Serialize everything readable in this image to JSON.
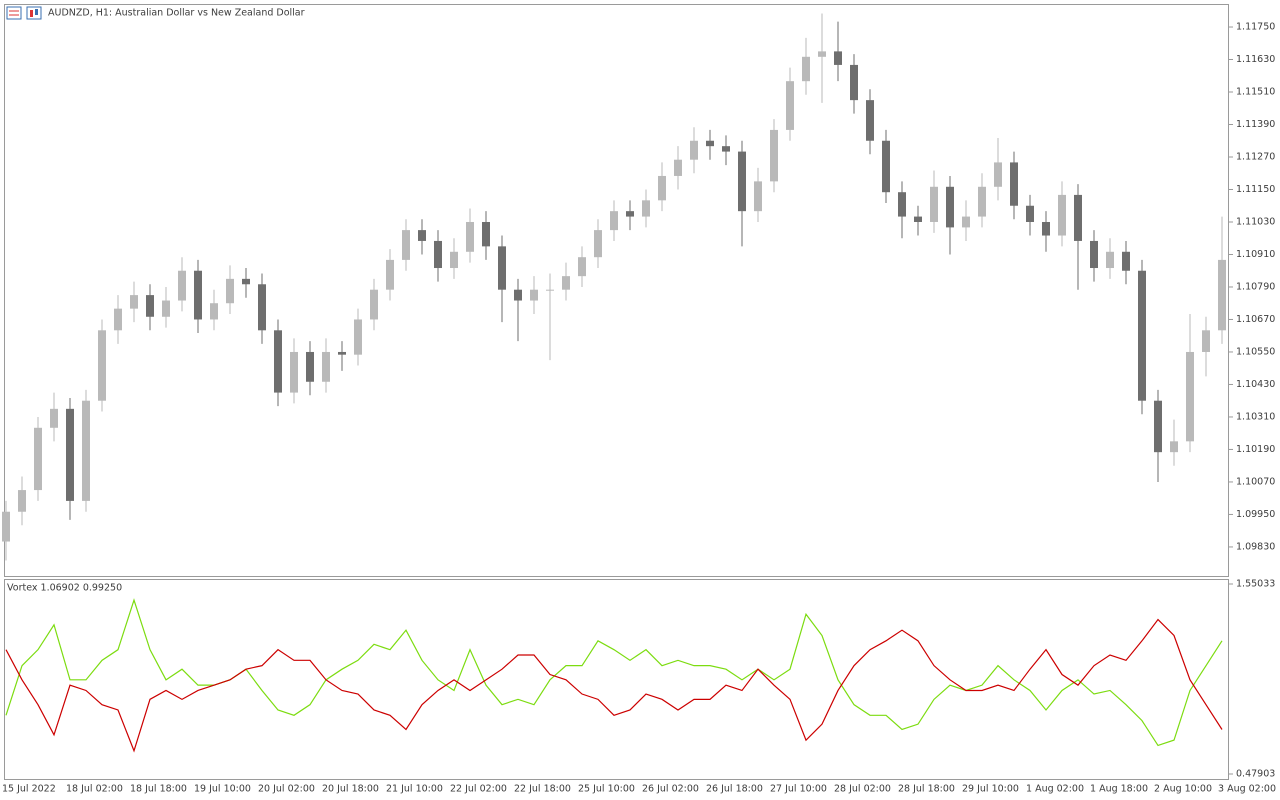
{
  "chart_data": [
    {
      "type": "candlestick",
      "title": "AUDNZD, H1:  Australian Dollar vs New Zealand Dollar",
      "categories": [
        "15 Jul 2022",
        null,
        null,
        null,
        "18 Jul 02:00",
        null,
        null,
        null,
        "18 Jul 18:00",
        null,
        null,
        null,
        "19 Jul 10:00",
        null,
        null,
        null,
        "20 Jul 02:00",
        null,
        null,
        null,
        "20 Jul 18:00",
        null,
        null,
        null,
        "21 Jul 10:00",
        null,
        null,
        null,
        "22 Jul 02:00",
        null,
        null,
        null,
        "22 Jul 18:00",
        null,
        null,
        null,
        "25 Jul 10:00",
        null,
        null,
        null,
        "26 Jul 02:00",
        null,
        null,
        null,
        "26 Jul 18:00",
        null,
        null,
        null,
        "27 Jul 10:00",
        null,
        null,
        null,
        "28 Jul 02:00",
        null,
        null,
        null,
        "28 Jul 18:00",
        null,
        null,
        null,
        "29 Jul 10:00",
        null,
        null,
        null,
        "1 Aug 02:00",
        null,
        null,
        null,
        "1 Aug 18:00",
        null,
        null,
        null,
        "2 Aug 10:00",
        null,
        null,
        null,
        "3 Aug 02:00"
      ],
      "open": [
        1.0985,
        1.0996,
        1.1004,
        1.1027,
        1.1034,
        1.1,
        1.1037,
        1.1063,
        1.1071,
        1.1076,
        1.1068,
        1.1074,
        1.1085,
        1.1067,
        1.1073,
        1.1082,
        1.108,
        1.1063,
        1.104,
        1.1055,
        1.1044,
        1.1055,
        1.1054,
        1.1067,
        1.1078,
        1.1089,
        1.11,
        1.1096,
        1.1086,
        1.1092,
        1.1103,
        1.1094,
        1.1078,
        1.1074,
        1.1078,
        1.1078,
        1.1083,
        1.109,
        1.11,
        1.1107,
        1.1105,
        1.1111,
        1.112,
        1.1126,
        1.1133,
        1.1131,
        1.1129,
        1.1107,
        1.1118,
        1.1137,
        1.1155,
        1.1164,
        1.1166,
        1.1161,
        1.1148,
        1.1133,
        1.1114,
        1.1105,
        1.1103,
        1.1116,
        1.1101,
        1.1105,
        1.1116,
        1.1125,
        1.1109,
        1.1103,
        1.1098,
        1.1113,
        1.1096,
        1.1086,
        1.1092,
        1.1085,
        1.1037,
        1.1018,
        1.1022,
        1.1055,
        1.1063
      ],
      "high": [
        1.1,
        1.1009,
        1.1031,
        1.104,
        1.1038,
        1.1041,
        1.1067,
        1.1076,
        1.1081,
        1.108,
        1.1079,
        1.109,
        1.1089,
        1.1078,
        1.1087,
        1.1086,
        1.1084,
        1.1067,
        1.106,
        1.1059,
        1.106,
        1.1059,
        1.1071,
        1.1082,
        1.1093,
        1.1104,
        1.1104,
        1.11,
        1.1097,
        1.1108,
        1.1107,
        1.1098,
        1.1082,
        1.1083,
        1.1084,
        1.1088,
        1.1094,
        1.1104,
        1.1111,
        1.1111,
        1.1115,
        1.1125,
        1.1131,
        1.1138,
        1.1137,
        1.1135,
        1.1133,
        1.1123,
        1.1141,
        1.116,
        1.1171,
        1.118,
        1.1177,
        1.1165,
        1.1152,
        1.1137,
        1.1118,
        1.1109,
        1.1122,
        1.112,
        1.1111,
        1.1121,
        1.1134,
        1.1129,
        1.1113,
        1.1107,
        1.1118,
        1.1117,
        1.11,
        1.1097,
        1.1096,
        1.1089,
        1.1041,
        1.103,
        1.1069,
        1.1068,
        1.1105
      ],
      "low": [
        1.0978,
        1.0991,
        1.1,
        1.1022,
        1.0993,
        1.0996,
        1.1033,
        1.1058,
        1.1066,
        1.1063,
        1.1064,
        1.107,
        1.1062,
        1.1063,
        1.1069,
        1.1075,
        1.1058,
        1.1035,
        1.1036,
        1.1039,
        1.104,
        1.1048,
        1.105,
        1.1063,
        1.1074,
        1.1085,
        1.1091,
        1.1081,
        1.1082,
        1.1088,
        1.1089,
        1.1066,
        1.1059,
        1.1069,
        1.1052,
        1.1074,
        1.1079,
        1.1086,
        1.1096,
        1.11,
        1.1101,
        1.1107,
        1.1115,
        1.1121,
        1.1126,
        1.1124,
        1.1094,
        1.1103,
        1.1114,
        1.1133,
        1.115,
        1.1147,
        1.1155,
        1.1143,
        1.1128,
        1.111,
        1.1097,
        1.1098,
        1.1099,
        1.1091,
        1.1096,
        1.1101,
        1.1111,
        1.1104,
        1.1098,
        1.1092,
        1.1094,
        1.1078,
        1.1081,
        1.1082,
        1.108,
        1.1032,
        1.1007,
        1.1013,
        1.1018,
        1.1046,
        1.1058
      ],
      "close": [
        1.0996,
        1.1004,
        1.1027,
        1.1034,
        1.1,
        1.1037,
        1.1063,
        1.1071,
        1.1076,
        1.1068,
        1.1074,
        1.1085,
        1.1067,
        1.1073,
        1.1082,
        1.108,
        1.1063,
        1.104,
        1.1055,
        1.1044,
        1.1055,
        1.1054,
        1.1067,
        1.1078,
        1.1089,
        1.11,
        1.1096,
        1.1086,
        1.1092,
        1.1103,
        1.1094,
        1.1078,
        1.1074,
        1.1078,
        1.1078,
        1.1083,
        1.109,
        1.11,
        1.1107,
        1.1105,
        1.1111,
        1.112,
        1.1126,
        1.1133,
        1.1131,
        1.1129,
        1.1107,
        1.1118,
        1.1137,
        1.1155,
        1.1164,
        1.1166,
        1.1161,
        1.1148,
        1.1133,
        1.1114,
        1.1105,
        1.1103,
        1.1116,
        1.1101,
        1.1105,
        1.1116,
        1.1125,
        1.1109,
        1.1103,
        1.1098,
        1.1113,
        1.1096,
        1.1086,
        1.1092,
        1.1085,
        1.1037,
        1.1018,
        1.1022,
        1.1055,
        1.1063,
        1.1089
      ],
      "up_color": "#b9b9b9",
      "down_color": "#6e6e6e",
      "ylim": [
        1.09719,
        1.11835
      ],
      "yticks": [
        {
          "value": 1.1175,
          "label": "1.11750"
        },
        {
          "value": 1.1163,
          "label": "1.11630"
        },
        {
          "value": 1.1151,
          "label": "1.11510"
        },
        {
          "value": 1.1139,
          "label": "1.11390"
        },
        {
          "value": 1.1127,
          "label": "1.11270"
        },
        {
          "value": 1.1115,
          "label": "1.11150"
        },
        {
          "value": 1.1103,
          "label": "1.11030"
        },
        {
          "value": 1.1091,
          "label": "1.10910"
        },
        {
          "value": 1.1079,
          "label": "1.10790"
        },
        {
          "value": 1.1067,
          "label": "1.10670"
        },
        {
          "value": 1.1055,
          "label": "1.10550"
        },
        {
          "value": 1.1043,
          "label": "1.10430"
        },
        {
          "value": 1.1031,
          "label": "1.10310"
        },
        {
          "value": 1.1019,
          "label": "1.10190"
        },
        {
          "value": 1.1007,
          "label": "1.10070"
        },
        {
          "value": 1.0995,
          "label": "1.09950"
        },
        {
          "value": 1.0983,
          "label": "1.09830"
        }
      ]
    },
    {
      "type": "line",
      "title": "Vortex 1.06902 0.99250",
      "series": [
        {
          "color": "#7cdc10",
          "values": [
            0.81,
            1.09,
            1.18,
            1.32,
            1.01,
            1.01,
            1.12,
            1.18,
            1.46,
            1.18,
            1.01,
            1.07,
            0.98,
            0.98,
            1.01,
            1.07,
            0.95,
            0.84,
            0.81,
            0.87,
            1.01,
            1.07,
            1.12,
            1.21,
            1.18,
            1.29,
            1.12,
            1.01,
            0.95,
            1.18,
            0.98,
            0.87,
            0.9,
            0.87,
            1.01,
            1.09,
            1.09,
            1.23,
            1.18,
            1.12,
            1.18,
            1.09,
            1.12,
            1.09,
            1.09,
            1.07,
            1.01,
            1.07,
            1.01,
            1.07,
            1.38,
            1.26,
            1.01,
            0.87,
            0.81,
            0.81,
            0.73,
            0.76,
            0.9,
            0.98,
            0.95,
            0.98,
            1.09,
            1.01,
            0.95,
            0.84,
            0.95,
            1.01,
            0.93,
            0.95,
            0.87,
            0.78,
            0.64,
            0.67,
            0.95,
            1.09,
            1.23
          ]
        },
        {
          "color": "#cc0000",
          "values": [
            1.18,
            1.01,
            0.87,
            0.7,
            0.98,
            0.95,
            0.87,
            0.84,
            0.61,
            0.9,
            0.95,
            0.9,
            0.95,
            0.98,
            1.01,
            1.07,
            1.09,
            1.18,
            1.12,
            1.12,
            1.01,
            0.95,
            0.93,
            0.84,
            0.81,
            0.73,
            0.87,
            0.95,
            1.01,
            0.95,
            1.01,
            1.07,
            1.15,
            1.15,
            1.04,
            1.01,
            0.93,
            0.9,
            0.81,
            0.84,
            0.93,
            0.9,
            0.84,
            0.9,
            0.9,
            0.98,
            0.95,
            1.07,
            0.98,
            0.9,
            0.67,
            0.76,
            0.95,
            1.09,
            1.18,
            1.23,
            1.29,
            1.23,
            1.09,
            1.01,
            0.95,
            0.95,
            0.98,
            0.95,
            1.07,
            1.18,
            1.04,
            0.98,
            1.09,
            1.15,
            1.12,
            1.23,
            1.35,
            1.26,
            1.01,
            0.87,
            0.73
          ]
        }
      ],
      "ylim": [
        0.4452,
        1.5729
      ],
      "yticks": [
        1.55033,
        0.47903
      ]
    }
  ]
}
